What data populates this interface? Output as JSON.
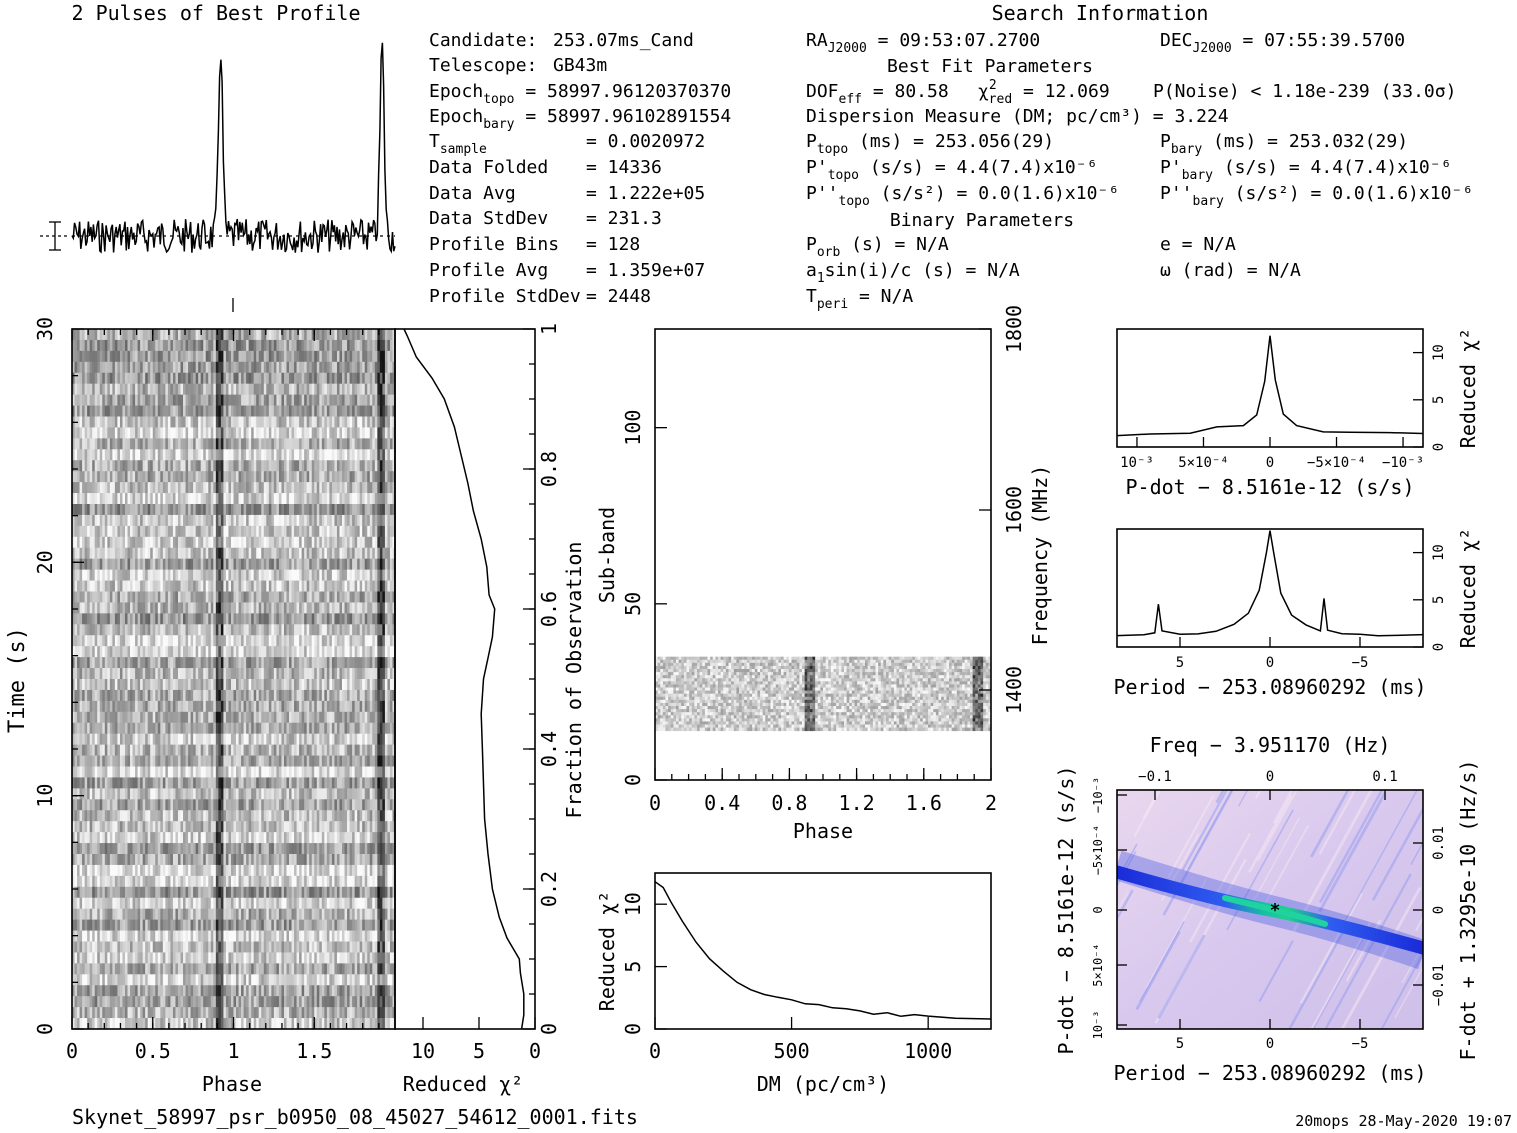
{
  "header": {
    "profile_title": "2 Pulses of Best Profile",
    "search_title": "Search Information",
    "best_fit_title": "Best Fit Parameters",
    "binary_title": "Binary Parameters",
    "filename": "Skynet_58997_psr_b0950_08_45027_54612_0001.fits",
    "footer": "20mops 28-May-2020 19:07"
  },
  "info": {
    "candidate": {
      "label": "Candidate:",
      "value": "253.07ms_Cand"
    },
    "telescope": {
      "label": "Telescope:",
      "value": "GB43m"
    },
    "epoch_topo": {
      "main": "Epoch",
      "sub": "topo",
      "rest": " = 58997.96120370370"
    },
    "epoch_bary": {
      "main": "Epoch",
      "sub": "bary",
      "rest": " = 58997.96102891554"
    },
    "t_sample": {
      "main": "T",
      "sub": "sample",
      "rest": "= 0.0020972"
    },
    "data_folded": {
      "label": "Data Folded",
      "value": "= 14336"
    },
    "data_avg": {
      "label": "Data Avg",
      "value": "= 1.222e+05"
    },
    "data_stddev": {
      "label": "Data StdDev",
      "value": "= 231.3"
    },
    "profile_bins": {
      "label": "Profile Bins",
      "value": "= 128"
    },
    "profile_avg": {
      "label": "Profile Avg",
      "value": "= 1.359e+07"
    },
    "profile_stddev": {
      "label": "Profile StdDev",
      "value": "= 2448"
    }
  },
  "search": {
    "ra": {
      "main": "RA",
      "sub": "J2000",
      "rest": " = 09:53:07.2700"
    },
    "dec": {
      "main": "DEC",
      "sub": "J2000",
      "rest": " = 07:55:39.5700"
    },
    "dof": {
      "main": "DOF",
      "sub": "eff",
      "rest": " = 80.58"
    },
    "chi2red": {
      "main": "χ",
      "sup": "2",
      "sub": "red",
      "rest": " = 12.069"
    },
    "pnoise": "P(Noise) < 1.18e-239  (33.0σ)",
    "dm": "Dispersion Measure (DM; pc/cm³) = 3.224",
    "p_topo": {
      "main": "P",
      "sub": "topo",
      "rest": " (ms) =  253.056(29)"
    },
    "p_bary": {
      "main": "P",
      "sub": "bary",
      "rest": " (ms) =  253.032(29)"
    },
    "pd_topo": {
      "main": "P'",
      "sub": "topo",
      "rest": " (s/s) =  4.4(7.4)x10⁻⁶"
    },
    "pd_bary": {
      "main": "P'",
      "sub": "bary",
      "rest": " (s/s) =  4.4(7.4)x10⁻⁶"
    },
    "pdd_topo": {
      "main": "P''",
      "sub": "topo",
      "rest": " (s/s²) = 0.0(1.6)x10⁻⁶"
    },
    "pdd_bary": {
      "main": "P''",
      "sub": "bary",
      "rest": " (s/s²) = 0.0(1.6)x10⁻⁶"
    },
    "p_orb": {
      "main": "P",
      "sub": "orb",
      "rest": " (s) = N/A"
    },
    "e": "e = N/A",
    "a1sini": {
      "main": "a",
      "sub": "1",
      "rest": "sin(i)/c (s) = N/A"
    },
    "omega": "ω (rad) = N/A",
    "t_peri": {
      "main": "T",
      "sub": "peri",
      "rest": " = N/A"
    }
  },
  "chart_data": [
    {
      "id": "pulse_profile",
      "type": "line",
      "title": "2 Pulses of Best Profile",
      "x_range": [
        0,
        2
      ],
      "peaks_at_phase": [
        0.92,
        1.92
      ],
      "xlabel": "",
      "ylabel": ""
    },
    {
      "id": "time_phase",
      "type": "heatmap",
      "xlabel": "Phase",
      "ylabel": "Time (s)",
      "xlim": [
        0,
        2
      ],
      "ylim": [
        0,
        30
      ],
      "x_ticks": [
        "0",
        "0.5",
        "1",
        "1.5"
      ],
      "y_ticks": [
        "0",
        "10",
        "20",
        "30"
      ],
      "pulse_phases": [
        0.92,
        1.92
      ]
    },
    {
      "id": "time_chi2",
      "type": "line",
      "xlabel": "Reduced χ²",
      "ylabel": "Fraction of Observation",
      "x_ticks": [
        "10",
        "5",
        "0"
      ],
      "y_ticks": [
        "0",
        "0.2",
        "0.4",
        "0.6",
        "0.8",
        "1"
      ],
      "x_reversed": true,
      "xlim": [
        12.5,
        0
      ],
      "ylim": [
        0,
        1
      ],
      "points": [
        [
          1.2,
          0.0
        ],
        [
          1.0,
          0.02
        ],
        [
          1.0,
          0.05
        ],
        [
          1.3,
          0.08
        ],
        [
          1.4,
          0.1
        ],
        [
          2.5,
          0.13
        ],
        [
          3.2,
          0.16
        ],
        [
          3.8,
          0.2
        ],
        [
          4.2,
          0.25
        ],
        [
          4.5,
          0.3
        ],
        [
          4.6,
          0.35
        ],
        [
          4.7,
          0.4
        ],
        [
          4.8,
          0.45
        ],
        [
          4.6,
          0.5
        ],
        [
          4.2,
          0.53
        ],
        [
          3.8,
          0.56
        ],
        [
          3.6,
          0.6
        ],
        [
          4.1,
          0.62
        ],
        [
          4.3,
          0.66
        ],
        [
          4.8,
          0.7
        ],
        [
          5.5,
          0.74
        ],
        [
          6.0,
          0.78
        ],
        [
          6.6,
          0.82
        ],
        [
          7.2,
          0.86
        ],
        [
          8.1,
          0.9
        ],
        [
          9.2,
          0.93
        ],
        [
          10.6,
          0.96
        ],
        [
          11.4,
          0.99
        ],
        [
          11.7,
          1.0
        ]
      ]
    },
    {
      "id": "subband_phase",
      "type": "heatmap",
      "xlabel": "Phase",
      "ylabel": "Sub-band",
      "y2label": "Frequency (MHz)",
      "xlim": [
        0,
        2
      ],
      "ylim": [
        0,
        128
      ],
      "x_ticks": [
        "0",
        "0.4",
        "0.8",
        "1.2",
        "1.6",
        "2"
      ],
      "y_ticks": [
        "0",
        "50",
        "100"
      ],
      "y2_ticks": [
        "1400",
        "1600",
        "1800"
      ],
      "active_subbands": [
        14,
        35
      ],
      "pulse_phases": [
        0.92,
        1.92
      ]
    },
    {
      "id": "dm_chi2",
      "type": "line",
      "xlabel": "DM (pc/cm³)",
      "ylabel": "Reduced χ²",
      "xlim": [
        0,
        1230
      ],
      "ylim": [
        0,
        12.5
      ],
      "x_ticks": [
        "0",
        "500",
        "1000"
      ],
      "y_ticks": [
        "0",
        "5",
        "10"
      ],
      "points": [
        [
          0,
          11.8
        ],
        [
          30,
          11.3
        ],
        [
          60,
          10.2
        ],
        [
          100,
          8.6
        ],
        [
          150,
          6.9
        ],
        [
          200,
          5.6
        ],
        [
          250,
          4.6
        ],
        [
          300,
          3.8
        ],
        [
          350,
          3.2
        ],
        [
          400,
          2.8
        ],
        [
          450,
          2.5
        ],
        [
          500,
          2.3
        ],
        [
          550,
          2.1
        ],
        [
          600,
          2.0
        ],
        [
          650,
          1.8
        ],
        [
          700,
          1.6
        ],
        [
          750,
          1.4
        ],
        [
          800,
          1.3
        ],
        [
          850,
          1.2
        ],
        [
          900,
          1.1
        ],
        [
          950,
          1.05
        ],
        [
          1000,
          1.0
        ],
        [
          1100,
          0.95
        ],
        [
          1230,
          0.9
        ]
      ]
    },
    {
      "id": "pdot_chi2",
      "type": "line",
      "xlabel": "P-dot − 8.5161e-12 (s/s)",
      "ylabel": "Reduced χ²",
      "xlim": [
        0.00115,
        -0.00115
      ],
      "ylim": [
        0,
        12.5
      ],
      "x_ticks": [
        "10⁻³",
        "5×10⁻⁴",
        "0",
        "−5×10⁻⁴",
        "−10⁻³"
      ],
      "y_ticks": [
        "0",
        "5",
        "10"
      ],
      "points": [
        [
          0.00115,
          1.3
        ],
        [
          0.0009,
          1.5
        ],
        [
          0.0006,
          1.6
        ],
        [
          0.0004,
          2.0
        ],
        [
          0.0002,
          2.3
        ],
        [
          0.0001,
          3.5
        ],
        [
          4e-05,
          7.0
        ],
        [
          0.0,
          11.8
        ],
        [
          -4e-05,
          7.0
        ],
        [
          -0.0001,
          3.4
        ],
        [
          -0.0002,
          2.2
        ],
        [
          -0.0004,
          1.6
        ],
        [
          -0.0006,
          1.5
        ],
        [
          -0.0009,
          1.5
        ],
        [
          -0.00115,
          1.4
        ]
      ]
    },
    {
      "id": "period_chi2",
      "type": "line",
      "xlabel": "Period − 253.08960292 (ms)",
      "ylabel": "Reduced χ²",
      "xlim": [
        8.5,
        -8.5
      ],
      "ylim": [
        0,
        12.5
      ],
      "x_ticks": [
        "5",
        "0",
        "−5"
      ],
      "y_ticks": [
        "0",
        "5",
        "10"
      ],
      "points": [
        [
          8.5,
          1.2
        ],
        [
          7,
          1.3
        ],
        [
          6.4,
          1.5
        ],
        [
          6.2,
          4.5
        ],
        [
          6.0,
          1.6
        ],
        [
          5,
          1.3
        ],
        [
          4,
          1.4
        ],
        [
          3,
          1.8
        ],
        [
          2,
          2.4
        ],
        [
          1.2,
          3.6
        ],
        [
          0.6,
          6.0
        ],
        [
          0.2,
          10.0
        ],
        [
          0,
          12.2
        ],
        [
          -0.2,
          10.0
        ],
        [
          -0.6,
          5.6
        ],
        [
          -1.2,
          3.4
        ],
        [
          -2,
          2.2
        ],
        [
          -2.8,
          1.8
        ],
        [
          -3,
          5.2
        ],
        [
          -3.2,
          1.7
        ],
        [
          -4,
          1.3
        ],
        [
          -5,
          1.2
        ],
        [
          -6,
          1.2
        ],
        [
          -7,
          1.3
        ],
        [
          -8.5,
          1.2
        ]
      ]
    },
    {
      "id": "period_pdot_plane",
      "type": "heatmap",
      "xlabel": "Period − 253.08960292 (ms)",
      "ylabel": "P-dot − 8.5161e-12 (s/s)",
      "x2label": "Freq − 3.951170 (Hz)",
      "y2label": "F-dot + 1.3295e-10 (Hz/s)",
      "xlim": [
        8.5,
        -8.5
      ],
      "x_ticks": [
        "5",
        "0",
        "−5"
      ],
      "x2_ticks": [
        "−0.1",
        "0",
        "0.1"
      ],
      "y_ticks": [
        "10⁻³",
        "5×10⁻⁴",
        "0",
        "−5×10⁻⁴",
        "−10⁻³"
      ],
      "y2_ticks": [
        "−0.01",
        "0",
        "0.01"
      ]
    }
  ]
}
